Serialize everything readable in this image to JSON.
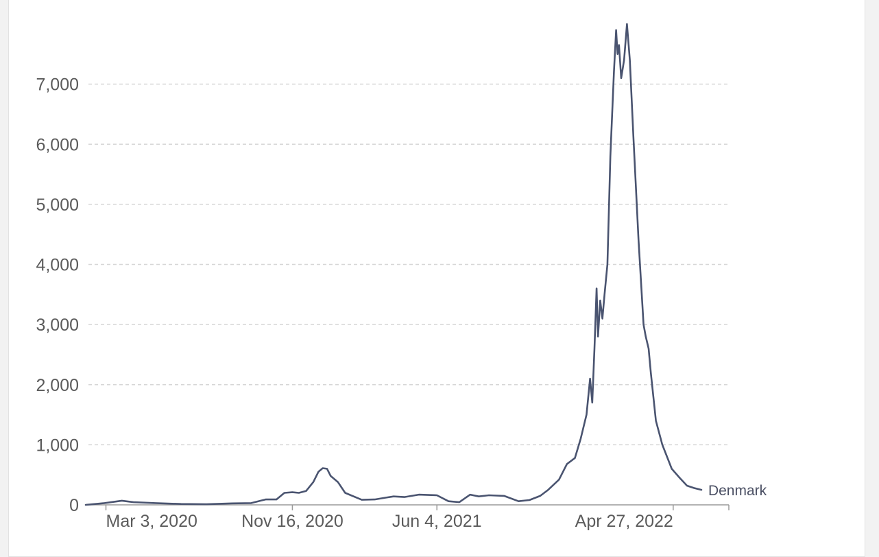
{
  "chart_data": {
    "type": "line",
    "title": "",
    "xlabel": "",
    "ylabel": "",
    "ylim": [
      0,
      8000
    ],
    "xlim": [
      "2020-02-04",
      "2022-07-13"
    ],
    "y_ticks": [
      {
        "value": 0,
        "label": "0"
      },
      {
        "value": 1000,
        "label": "1,000"
      },
      {
        "value": 2000,
        "label": "2,000"
      },
      {
        "value": 3000,
        "label": "3,000"
      },
      {
        "value": 4000,
        "label": "4,000"
      },
      {
        "value": 5000,
        "label": "5,000"
      },
      {
        "value": 6000,
        "label": "6,000"
      },
      {
        "value": 7000,
        "label": "7,000"
      }
    ],
    "x_ticks": [
      {
        "date": "2020-03-03",
        "label": "Mar 3, 2020"
      },
      {
        "date": "2020-11-16",
        "label": "Nov 16, 2020"
      },
      {
        "date": "2021-06-04",
        "label": "Jun 4, 2021"
      },
      {
        "date": "2022-04-27",
        "label": "Apr 27, 2022"
      }
    ],
    "grid": true,
    "color": "#4a5470",
    "series": [
      {
        "name": "Denmark",
        "points": [
          [
            "2020-02-04",
            0
          ],
          [
            "2020-03-01",
            30
          ],
          [
            "2020-03-25",
            70
          ],
          [
            "2020-04-10",
            45
          ],
          [
            "2020-05-10",
            30
          ],
          [
            "2020-06-15",
            15
          ],
          [
            "2020-07-20",
            10
          ],
          [
            "2020-08-25",
            25
          ],
          [
            "2020-09-20",
            30
          ],
          [
            "2020-10-10",
            90
          ],
          [
            "2020-10-25",
            90
          ],
          [
            "2020-11-05",
            200
          ],
          [
            "2020-11-16",
            210
          ],
          [
            "2020-11-25",
            200
          ],
          [
            "2020-12-05",
            230
          ],
          [
            "2020-12-15",
            380
          ],
          [
            "2020-12-22",
            550
          ],
          [
            "2020-12-28",
            610
          ],
          [
            "2021-01-03",
            600
          ],
          [
            "2021-01-08",
            480
          ],
          [
            "2021-01-18",
            380
          ],
          [
            "2021-01-28",
            200
          ],
          [
            "2021-02-20",
            85
          ],
          [
            "2021-03-10",
            90
          ],
          [
            "2021-03-25",
            120
          ],
          [
            "2021-04-05",
            140
          ],
          [
            "2021-04-20",
            130
          ],
          [
            "2021-05-10",
            170
          ],
          [
            "2021-06-04",
            160
          ],
          [
            "2021-06-20",
            60
          ],
          [
            "2021-07-05",
            45
          ],
          [
            "2021-07-20",
            170
          ],
          [
            "2021-08-01",
            140
          ],
          [
            "2021-08-15",
            160
          ],
          [
            "2021-09-05",
            150
          ],
          [
            "2021-09-25",
            60
          ],
          [
            "2021-10-10",
            80
          ],
          [
            "2021-10-25",
            150
          ],
          [
            "2021-11-05",
            250
          ],
          [
            "2021-11-20",
            420
          ],
          [
            "2021-12-01",
            680
          ],
          [
            "2021-12-12",
            780
          ],
          [
            "2021-12-20",
            1100
          ],
          [
            "2021-12-28",
            1500
          ],
          [
            "2022-01-02",
            2100
          ],
          [
            "2022-01-05",
            1700
          ],
          [
            "2022-01-08",
            2600
          ],
          [
            "2022-01-11",
            3600
          ],
          [
            "2022-01-13",
            2800
          ],
          [
            "2022-01-16",
            3400
          ],
          [
            "2022-01-19",
            3100
          ],
          [
            "2022-01-22",
            3500
          ],
          [
            "2022-01-26",
            4000
          ],
          [
            "2022-01-30",
            5800
          ],
          [
            "2022-02-04",
            7200
          ],
          [
            "2022-02-07",
            7900
          ],
          [
            "2022-02-09",
            7500
          ],
          [
            "2022-02-11",
            7650
          ],
          [
            "2022-02-14",
            7100
          ],
          [
            "2022-02-18",
            7400
          ],
          [
            "2022-02-22",
            8000
          ],
          [
            "2022-02-26",
            7400
          ],
          [
            "2022-03-03",
            6100
          ],
          [
            "2022-03-10",
            4400
          ],
          [
            "2022-03-17",
            3000
          ],
          [
            "2022-03-20",
            2800
          ],
          [
            "2022-03-24",
            2600
          ],
          [
            "2022-03-27",
            2200
          ],
          [
            "2022-04-03",
            1400
          ],
          [
            "2022-04-12",
            1000
          ],
          [
            "2022-04-25",
            600
          ],
          [
            "2022-05-06",
            450
          ],
          [
            "2022-05-16",
            320
          ],
          [
            "2022-05-26",
            280
          ],
          [
            "2022-06-05",
            250
          ]
        ]
      }
    ]
  }
}
